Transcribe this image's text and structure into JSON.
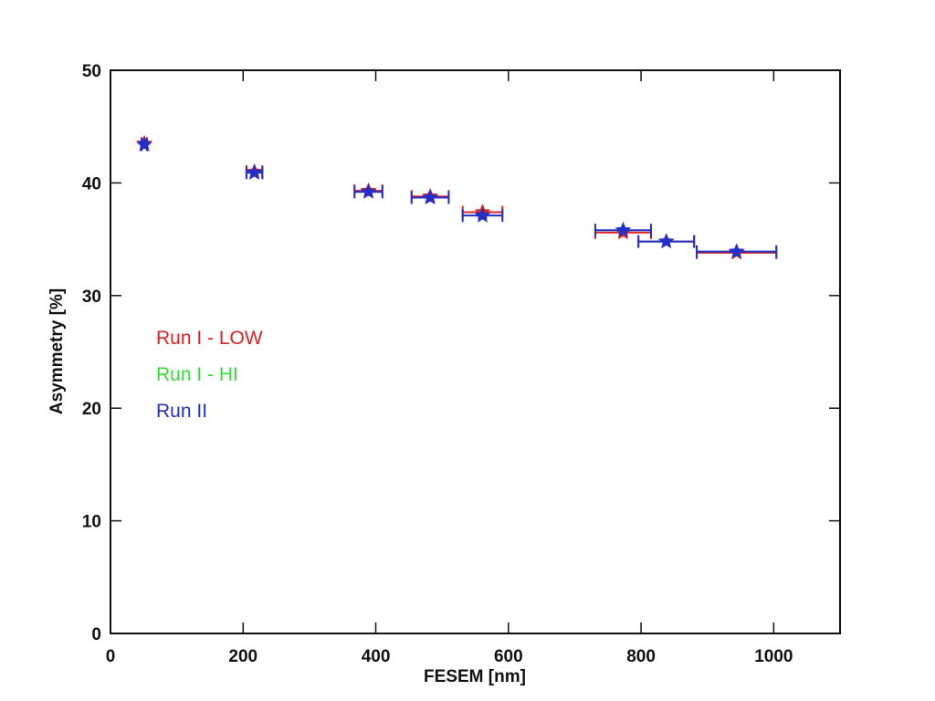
{
  "chart_data": {
    "type": "scatter",
    "xlabel": "FESEM [nm]",
    "ylabel": "Asymmetry [%]",
    "xlim": [
      0,
      1100
    ],
    "ylim": [
      0,
      50
    ],
    "x_ticks": [
      0,
      200,
      400,
      600,
      800,
      1000
    ],
    "y_ticks": [
      0,
      10,
      20,
      30,
      40,
      50
    ],
    "x_tick_labels": [
      "0",
      "200",
      "400",
      "600",
      "800",
      "1000"
    ],
    "y_tick_labels": [
      "0",
      "10",
      "20",
      "30",
      "40",
      "50"
    ],
    "grid": false,
    "legend_position": "middle-left",
    "marker": "star",
    "series": [
      {
        "name": "Run I - LOW",
        "color": "#e02020",
        "points": [
          {
            "x": 51,
            "y": 43.5,
            "xerr": 4
          },
          {
            "x": 217,
            "y": 41.0,
            "xerr": 12
          },
          {
            "x": 389,
            "y": 39.3,
            "xerr": 21
          },
          {
            "x": 482,
            "y": 38.8,
            "xerr": 28
          },
          {
            "x": 561,
            "y": 37.4,
            "xerr": 30
          },
          {
            "x": 773,
            "y": 35.6,
            "xerr": 42
          },
          {
            "x": 838,
            "y": 34.8,
            "xerr": 42
          },
          {
            "x": 944,
            "y": 33.8,
            "xerr": 60
          }
        ]
      },
      {
        "name": "Run I - HI",
        "color": "#33dd33",
        "points": []
      },
      {
        "name": "Run II",
        "color": "#2030c8",
        "points": [
          {
            "x": 51,
            "y": 43.4,
            "xerr": 4
          },
          {
            "x": 217,
            "y": 40.9,
            "xerr": 12
          },
          {
            "x": 389,
            "y": 39.2,
            "xerr": 21
          },
          {
            "x": 482,
            "y": 38.7,
            "xerr": 28
          },
          {
            "x": 561,
            "y": 37.1,
            "xerr": 30
          },
          {
            "x": 773,
            "y": 35.8,
            "xerr": 42
          },
          {
            "x": 838,
            "y": 34.8,
            "xerr": 42
          },
          {
            "x": 944,
            "y": 33.9,
            "xerr": 60
          }
        ]
      }
    ]
  }
}
